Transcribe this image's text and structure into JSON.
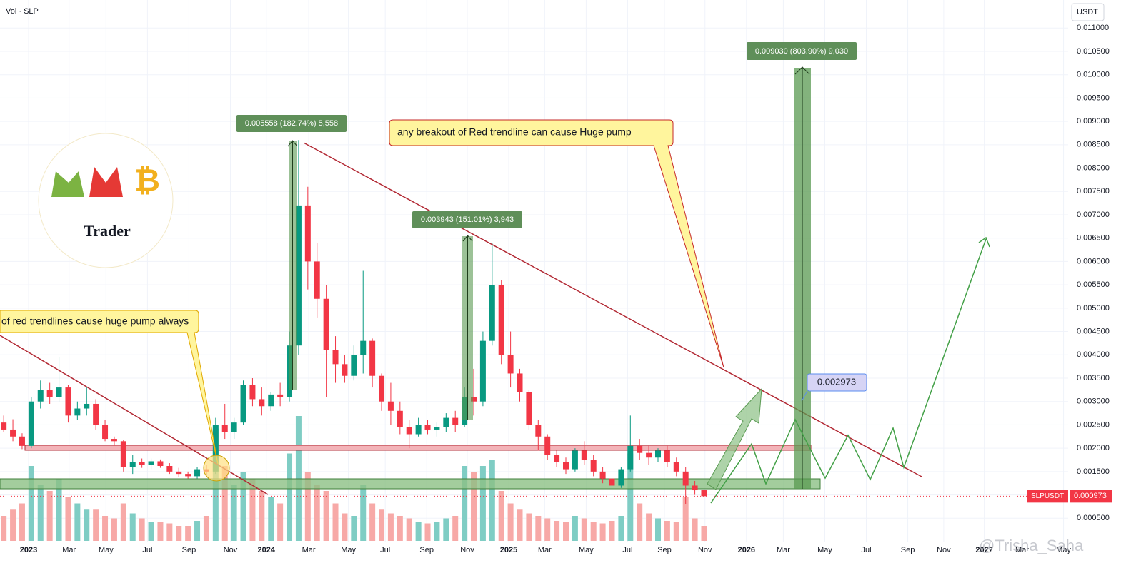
{
  "chart_data": {
    "type": "candlestick",
    "indicator_label": "Vol · SLP",
    "currency": "USDT",
    "symbol": "SLPUSDT",
    "last_price": 0.000973,
    "up_color": "#089981",
    "down_color": "#f23645",
    "up_volume_color": "#7fcdc4",
    "down_volume_color": "#f7a9a7",
    "xlim": [
      -0.4,
      115.5
    ],
    "ylim": [
      0,
      0.0116
    ],
    "vlim": [
      0,
      100
    ],
    "grid": true,
    "xticks": [
      {
        "value": 2.7,
        "label": "2023"
      },
      {
        "value": 7.1,
        "label": "Mar"
      },
      {
        "value": 11.1,
        "label": "May"
      },
      {
        "value": 15.6,
        "label": "Jul"
      },
      {
        "value": 20.1,
        "label": "Sep"
      },
      {
        "value": 24.6,
        "label": "Nov"
      },
      {
        "value": 28.5,
        "label": "2024"
      },
      {
        "value": 33.1,
        "label": "Mar"
      },
      {
        "value": 37.4,
        "label": "May"
      },
      {
        "value": 41.4,
        "label": "Jul"
      },
      {
        "value": 45.9,
        "label": "Sep"
      },
      {
        "value": 50.3,
        "label": "Nov"
      },
      {
        "value": 54.8,
        "label": "2025"
      },
      {
        "value": 58.7,
        "label": "Mar"
      },
      {
        "value": 63.2,
        "label": "May"
      },
      {
        "value": 67.7,
        "label": "Jul"
      },
      {
        "value": 71.7,
        "label": "Sep"
      },
      {
        "value": 76.1,
        "label": "Nov"
      },
      {
        "value": 80.6,
        "label": "2026"
      },
      {
        "value": 84.6,
        "label": "Mar"
      },
      {
        "value": 89.1,
        "label": "May"
      },
      {
        "value": 93.6,
        "label": "Jul"
      },
      {
        "value": 98.1,
        "label": "Sep"
      },
      {
        "value": 102,
        "label": "Nov"
      },
      {
        "value": 106.4,
        "label": "2027"
      },
      {
        "value": 110.5,
        "label": "Mar"
      },
      {
        "value": 115,
        "label": "May"
      }
    ],
    "yticks": [
      {
        "value": 0.0005,
        "label": "0.000500"
      },
      {
        "value": 0.001,
        "label": "0.001000"
      },
      {
        "value": 0.0015,
        "label": "0.001500"
      },
      {
        "value": 0.002,
        "label": "0.002000"
      },
      {
        "value": 0.0025,
        "label": "0.002500"
      },
      {
        "value": 0.003,
        "label": "0.003000"
      },
      {
        "value": 0.0035,
        "label": "0.003500"
      },
      {
        "value": 0.004,
        "label": "0.004000"
      },
      {
        "value": 0.0045,
        "label": "0.004500"
      },
      {
        "value": 0.005,
        "label": "0.005000"
      },
      {
        "value": 0.0055,
        "label": "0.005500"
      },
      {
        "value": 0.006,
        "label": "0.006000"
      },
      {
        "value": 0.0065,
        "label": "0.006500"
      },
      {
        "value": 0.007,
        "label": "0.007000"
      },
      {
        "value": 0.0075,
        "label": "0.007500"
      },
      {
        "value": 0.008,
        "label": "0.008000"
      },
      {
        "value": 0.0085,
        "label": "0.008500"
      },
      {
        "value": 0.009,
        "label": "0.009000"
      },
      {
        "value": 0.0095,
        "label": "0.009500"
      },
      {
        "value": 0.01,
        "label": "0.010000"
      },
      {
        "value": 0.0105,
        "label": "0.010500"
      },
      {
        "value": 0.011,
        "label": "0.011000"
      }
    ],
    "open": [
      0.00255,
      0.0024,
      0.00225,
      0.00205,
      0.003,
      0.00325,
      0.0031,
      0.0033,
      0.0027,
      0.00285,
      0.00295,
      0.0025,
      0.0022,
      0.00215,
      0.0016,
      0.0017,
      0.00165,
      0.00172,
      0.00162,
      0.0015,
      0.00145,
      0.0014,
      0.00155,
      0.0015,
      0.0025,
      0.00235,
      0.00255,
      0.00335,
      0.00305,
      0.0029,
      0.00315,
      0.0031,
      0.0042,
      0.0072,
      0.006,
      0.0052,
      0.0041,
      0.0038,
      0.00355,
      0.004,
      0.0043,
      0.00355,
      0.003,
      0.0028,
      0.00245,
      0.0023,
      0.0025,
      0.0024,
      0.00245,
      0.00265,
      0.0025,
      0.0031,
      0.003,
      0.0043,
      0.0055,
      0.004,
      0.0036,
      0.0032,
      0.0025,
      0.00225,
      0.00185,
      0.0017,
      0.00155,
      0.00195,
      0.00175,
      0.0015,
      0.00135,
      0.0012,
      0.00155,
      0.00205,
      0.0019,
      0.0018,
      0.00195,
      0.0017,
      0.0015,
      0.0012,
      0.0011
    ],
    "high": [
      0.0027,
      0.00262,
      0.00232,
      0.0031,
      0.00345,
      0.0034,
      0.00395,
      0.00335,
      0.003,
      0.0033,
      0.00305,
      0.0026,
      0.00225,
      0.00218,
      0.00185,
      0.00178,
      0.00178,
      0.00176,
      0.00168,
      0.00158,
      0.0015,
      0.0016,
      0.00165,
      0.00265,
      0.00295,
      0.00265,
      0.00345,
      0.0035,
      0.0033,
      0.0032,
      0.0034,
      0.0045,
      0.0086,
      0.0076,
      0.0064,
      0.0055,
      0.0044,
      0.004,
      0.0042,
      0.0058,
      0.00435,
      0.0036,
      0.0034,
      0.003,
      0.0026,
      0.00265,
      0.0026,
      0.00255,
      0.00275,
      0.0028,
      0.0033,
      0.0037,
      0.0045,
      0.0064,
      0.0056,
      0.0045,
      0.0037,
      0.00325,
      0.0026,
      0.0023,
      0.00195,
      0.0018,
      0.002,
      0.00215,
      0.00185,
      0.0016,
      0.0014,
      0.0016,
      0.0027,
      0.0022,
      0.00205,
      0.002,
      0.00205,
      0.0018,
      0.0016,
      0.0013,
      0.00115
    ],
    "low": [
      0.00235,
      0.00215,
      0.00198,
      0.002,
      0.00285,
      0.00295,
      0.003,
      0.00255,
      0.0026,
      0.0027,
      0.0024,
      0.00215,
      0.00205,
      0.0015,
      0.00145,
      0.00158,
      0.00155,
      0.00158,
      0.00145,
      0.00138,
      0.00135,
      0.00135,
      0.0014,
      0.00145,
      0.0022,
      0.0022,
      0.0025,
      0.0029,
      0.0027,
      0.0028,
      0.0029,
      0.003,
      0.004,
      0.0054,
      0.0048,
      0.0031,
      0.0034,
      0.0034,
      0.00345,
      0.0036,
      0.0033,
      0.0028,
      0.0025,
      0.0023,
      0.002,
      0.00225,
      0.0023,
      0.00225,
      0.00235,
      0.00235,
      0.00245,
      0.0027,
      0.0029,
      0.0042,
      0.0038,
      0.0033,
      0.003,
      0.0024,
      0.00195,
      0.00175,
      0.0016,
      0.00145,
      0.0015,
      0.00165,
      0.0014,
      0.00125,
      0.00115,
      0.00115,
      0.0015,
      0.00175,
      0.00165,
      0.0017,
      0.0016,
      0.0014,
      0.0008,
      0.001,
      0.00095
    ],
    "close": [
      0.0024,
      0.00225,
      0.00205,
      0.003,
      0.00325,
      0.0031,
      0.0033,
      0.0027,
      0.00285,
      0.00295,
      0.0025,
      0.0022,
      0.00215,
      0.0016,
      0.0017,
      0.00165,
      0.00172,
      0.00162,
      0.0015,
      0.00145,
      0.0014,
      0.00155,
      0.0015,
      0.0025,
      0.00235,
      0.00255,
      0.00335,
      0.00305,
      0.0029,
      0.00315,
      0.0031,
      0.0042,
      0.0072,
      0.006,
      0.0052,
      0.0041,
      0.0038,
      0.00355,
      0.004,
      0.0043,
      0.00355,
      0.003,
      0.0028,
      0.00245,
      0.0023,
      0.0025,
      0.0024,
      0.00245,
      0.00265,
      0.0025,
      0.0031,
      0.003,
      0.0043,
      0.0055,
      0.004,
      0.0036,
      0.0032,
      0.0025,
      0.00225,
      0.00185,
      0.0017,
      0.00155,
      0.00195,
      0.00175,
      0.0015,
      0.00135,
      0.0012,
      0.00155,
      0.00205,
      0.0019,
      0.0018,
      0.00195,
      0.0017,
      0.0015,
      0.0012,
      0.0011,
      0.000973
    ],
    "volume": [
      20,
      25,
      30,
      60,
      45,
      40,
      50,
      35,
      30,
      25,
      25,
      20,
      18,
      30,
      22,
      18,
      15,
      15,
      14,
      12,
      12,
      16,
      20,
      90,
      60,
      45,
      55,
      50,
      40,
      35,
      30,
      70,
      100,
      55,
      45,
      40,
      30,
      22,
      20,
      45,
      30,
      25,
      22,
      20,
      18,
      15,
      14,
      15,
      18,
      20,
      60,
      55,
      60,
      65,
      40,
      30,
      25,
      22,
      20,
      18,
      16,
      15,
      20,
      18,
      15,
      14,
      16,
      20,
      70,
      30,
      22,
      18,
      16,
      15,
      35,
      18,
      12
    ],
    "annotations": {
      "measure_1": "0.005558 (182.74%) 5,558",
      "measure_2": "0.003943 (151.01%) 3,943",
      "measure_3": "0.009030 (803.90%) 9,030",
      "callout_right": "any breakout of Red trendline can cause Huge pump",
      "callout_left": "of red trendlines cause huge pump always",
      "target_price": 0.002973,
      "logo": "Trader",
      "watermark": "@Trisha_Saha"
    }
  }
}
